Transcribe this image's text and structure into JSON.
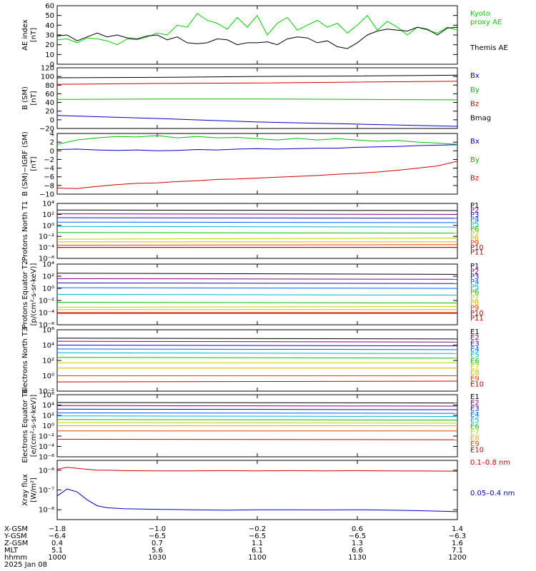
{
  "chart_data": [
    {
      "type": "line",
      "ylabel": "AE index",
      "yunit": "[nT]",
      "ylim": [
        0,
        60
      ],
      "yticks": [
        "0",
        "10",
        "20",
        "30",
        "40",
        "50",
        "60"
      ],
      "legend_placement": "right",
      "x": [
        1000,
        1003,
        1006,
        1009,
        1012,
        1015,
        1018,
        1021,
        1024,
        1027,
        1030,
        1033,
        1036,
        1039,
        1042,
        1045,
        1048,
        1051,
        1054,
        1057,
        1100,
        1103,
        1106,
        1109,
        1112,
        1115,
        1118,
        1121,
        1124,
        1127,
        1130,
        1133,
        1136,
        1139,
        1142,
        1145,
        1148,
        1151,
        1154,
        1157,
        1200
      ],
      "series": [
        {
          "name": "Kyoto proxy AE",
          "color": "#00d000",
          "values": [
            25,
            26,
            22,
            27,
            26,
            24,
            20,
            26,
            25,
            28,
            32,
            30,
            40,
            38,
            52,
            45,
            42,
            36,
            48,
            38,
            50,
            30,
            42,
            48,
            35,
            40,
            45,
            38,
            42,
            32,
            40,
            50,
            35,
            44,
            38,
            30,
            38,
            35,
            32,
            38,
            35
          ]
        },
        {
          "name": "Themis AE",
          "color": "#000000",
          "values": [
            29,
            30,
            24,
            28,
            32,
            28,
            30,
            27,
            26,
            29,
            30,
            25,
            28,
            22,
            21,
            22,
            26,
            25,
            20,
            22,
            22,
            23,
            20,
            26,
            28,
            27,
            22,
            24,
            18,
            16,
            22,
            30,
            34,
            36,
            35,
            34,
            38,
            36,
            30,
            37,
            38
          ]
        }
      ]
    },
    {
      "type": "line",
      "ylabel": "B (SM)",
      "yunit": "[nT]",
      "ylim": [
        -20,
        120
      ],
      "yticks": [
        "−20",
        "0",
        "20",
        "40",
        "60",
        "80",
        "100",
        "120"
      ],
      "legend_placement": "right",
      "x": [
        1000,
        1030,
        1100,
        1130,
        1200
      ],
      "series": [
        {
          "name": "Bx",
          "color": "#0000c8",
          "values": [
            10,
            3,
            -5,
            -10,
            -15
          ]
        },
        {
          "name": "By",
          "color": "#00c000",
          "values": [
            47,
            48,
            48,
            47,
            46
          ]
        },
        {
          "name": "Bz",
          "color": "#d00000",
          "values": [
            82,
            84,
            85,
            87,
            89
          ]
        },
        {
          "name": "Bmag",
          "color": "#000000",
          "values": [
            97,
            98,
            100,
            101,
            103
          ]
        }
      ]
    },
    {
      "type": "line",
      "ylabel": "B (SM)−IGRF (SM)",
      "yunit": "[nT]",
      "ylim": [
        -10,
        4
      ],
      "yticks": [
        "−10",
        "−8",
        "−6",
        "−4",
        "−2",
        "0",
        "2",
        "4"
      ],
      "legend_placement": "right",
      "x": [
        1000,
        1006,
        1012,
        1018,
        1024,
        1030,
        1036,
        1042,
        1048,
        1054,
        1100,
        1106,
        1112,
        1118,
        1124,
        1130,
        1136,
        1142,
        1148,
        1154,
        1200
      ],
      "series": [
        {
          "name": "Bx",
          "color": "#0000c8",
          "values": [
            0.3,
            0.4,
            0.2,
            0.1,
            0.2,
            0.0,
            0.1,
            0.3,
            0.2,
            0.4,
            0.5,
            0.4,
            0.5,
            0.6,
            0.6,
            0.8,
            0.9,
            1.0,
            1.2,
            1.3,
            1.4
          ]
        },
        {
          "name": "By",
          "color": "#00c000",
          "values": [
            1.5,
            2.5,
            3.0,
            3.3,
            3.2,
            3.5,
            3.0,
            3.3,
            3.0,
            3.1,
            2.8,
            2.5,
            2.9,
            2.5,
            2.8,
            2.5,
            2.2,
            2.4,
            2.0,
            1.8,
            1.5
          ]
        },
        {
          "name": "Bz",
          "color": "#d00000",
          "values": [
            -8.6,
            -8.7,
            -8.2,
            -7.8,
            -7.5,
            -7.4,
            -7.1,
            -6.9,
            -6.6,
            -6.5,
            -6.3,
            -6.1,
            -5.9,
            -5.7,
            -5.4,
            -5.2,
            -4.9,
            -4.5,
            -4.0,
            -3.5,
            -2.4
          ]
        }
      ]
    },
    {
      "type": "line",
      "ylabel": "Protons North T1",
      "yunit": "",
      "ylim": [
        -6,
        4
      ],
      "log": true,
      "yticks": [
        "10⁻⁶",
        "10⁻⁴",
        "10⁻²",
        "10⁰",
        "10²",
        "10⁴"
      ],
      "yticks_exp": [
        -6,
        -4,
        -2,
        0,
        2,
        4
      ],
      "legend_placement": "right",
      "x": [
        1000,
        1200
      ],
      "series": [
        {
          "name": "P1",
          "color": "#000000",
          "values": [
            2.8,
            2.7
          ]
        },
        {
          "name": "P2",
          "color": "#800080",
          "values": [
            2.1,
            2.0
          ]
        },
        {
          "name": "P3",
          "color": "#1010b0",
          "values": [
            1.4,
            1.3
          ]
        },
        {
          "name": "P4",
          "color": "#0060ff",
          "values": [
            0.6,
            0.5
          ]
        },
        {
          "name": "P5",
          "color": "#00b0d0",
          "values": [
            -0.2,
            -0.3
          ]
        },
        {
          "name": "P6",
          "color": "#00c000",
          "values": [
            -1.3,
            -1.4
          ]
        },
        {
          "name": "P7",
          "color": "#c0d000",
          "values": [
            -2.5,
            -2.3
          ]
        },
        {
          "name": "P8",
          "color": "#e0b000",
          "values": [
            -3.0,
            -3.0
          ]
        },
        {
          "name": "P9",
          "color": "#e04000",
          "values": [
            -3.6,
            -3.5
          ]
        },
        {
          "name": "P10",
          "color": "#c00000",
          "values": [
            -4.0,
            -4.0
          ]
        },
        {
          "name": "P11",
          "color": "#c00000",
          "values": [
            -4.0,
            -4.0
          ]
        }
      ]
    },
    {
      "type": "line",
      "ylabel": "Protons Equator T2",
      "yunit": "[p/(cm²-s-sr-keV)]",
      "ylim": [
        -6,
        4
      ],
      "log": true,
      "yticks": [
        "10⁻⁶",
        "10⁻⁴",
        "10⁻²",
        "10⁰",
        "10²",
        "10⁴"
      ],
      "yticks_exp": [
        -6,
        -4,
        -2,
        0,
        2,
        4
      ],
      "legend_placement": "right",
      "x": [
        1000,
        1200
      ],
      "series": [
        {
          "name": "P1",
          "color": "#000000",
          "values": [
            2.5,
            2.3
          ]
        },
        {
          "name": "P2",
          "color": "#800080",
          "values": [
            1.6,
            1.5
          ]
        },
        {
          "name": "P3",
          "color": "#1010b0",
          "values": [
            0.9,
            0.8
          ]
        },
        {
          "name": "P4",
          "color": "#0060ff",
          "values": [
            0.1,
            0.0
          ]
        },
        {
          "name": "P5",
          "color": "#00b0d0",
          "values": [
            -1.0,
            -1.1
          ]
        },
        {
          "name": "P6",
          "color": "#00c000",
          "values": [
            -2.3,
            -2.4
          ]
        },
        {
          "name": "P7",
          "color": "#c0d000",
          "values": [
            -3.1,
            -3.0
          ]
        },
        {
          "name": "P8",
          "color": "#e0b000",
          "values": [
            -3.5,
            -3.5
          ]
        },
        {
          "name": "P9",
          "color": "#e04000",
          "values": [
            -4.0,
            -4.0
          ]
        },
        {
          "name": "P10",
          "color": "#c00000",
          "values": [
            -4.1,
            -4.1
          ]
        },
        {
          "name": "P11",
          "color": "#c00000",
          "values": [
            -4.1,
            -4.1
          ]
        }
      ]
    },
    {
      "type": "line",
      "ylabel": "Electrons North T3",
      "yunit": "",
      "ylim": [
        -2,
        6
      ],
      "log": true,
      "yticks": [
        "10⁻²",
        "10⁰",
        "10²",
        "10⁴",
        "10⁶"
      ],
      "yticks_exp": [
        -2,
        0,
        2,
        4,
        6
      ],
      "legend_placement": "right",
      "x": [
        1000,
        1200
      ],
      "series": [
        {
          "name": "E1",
          "color": "#000000",
          "values": [
            4.9,
            4.8
          ]
        },
        {
          "name": "E2",
          "color": "#800080",
          "values": [
            4.5,
            4.4
          ]
        },
        {
          "name": "E3",
          "color": "#1010b0",
          "values": [
            4.0,
            3.9
          ]
        },
        {
          "name": "E4",
          "color": "#0060ff",
          "values": [
            3.5,
            3.4
          ]
        },
        {
          "name": "E5",
          "color": "#00b0d0",
          "values": [
            3.0,
            2.9
          ]
        },
        {
          "name": "E6",
          "color": "#00c000",
          "values": [
            2.4,
            2.3
          ]
        },
        {
          "name": "E7",
          "color": "#c0d000",
          "values": [
            1.7,
            1.7
          ]
        },
        {
          "name": "E8",
          "color": "#e0b000",
          "values": [
            1.0,
            1.0
          ]
        },
        {
          "name": "E9",
          "color": "#e04000",
          "values": [
            0.0,
            0.0
          ]
        },
        {
          "name": "E10",
          "color": "#c00000",
          "values": [
            -0.8,
            -0.7
          ]
        }
      ]
    },
    {
      "type": "line",
      "ylabel": "Electrons Equator T4",
      "yunit": "[e/(cm²-s-sr-keV)]",
      "ylim": [
        -6,
        6
      ],
      "log": true,
      "yticks": [
        "10⁻⁶",
        "10⁻⁴",
        "10⁻²",
        "10⁰",
        "10²",
        "10⁴",
        "10⁶"
      ],
      "yticks_exp": [
        -6,
        -4,
        -2,
        0,
        2,
        4,
        6
      ],
      "legend_placement": "right",
      "x": [
        1000,
        1200
      ],
      "series": [
        {
          "name": "E1",
          "color": "#000000",
          "values": [
            4.5,
            4.4
          ]
        },
        {
          "name": "E2",
          "color": "#800080",
          "values": [
            3.9,
            3.8
          ]
        },
        {
          "name": "E3",
          "color": "#1010b0",
          "values": [
            3.2,
            3.1
          ]
        },
        {
          "name": "E4",
          "color": "#0060ff",
          "values": [
            2.5,
            2.4
          ]
        },
        {
          "name": "E5",
          "color": "#00b0d0",
          "values": [
            1.9,
            1.8
          ]
        },
        {
          "name": "E6",
          "color": "#00c000",
          "values": [
            1.2,
            1.1
          ]
        },
        {
          "name": "E7",
          "color": "#c0d000",
          "values": [
            0.6,
            0.5
          ]
        },
        {
          "name": "E8",
          "color": "#e0b000",
          "values": [
            0.0,
            0.0
          ]
        },
        {
          "name": "E9",
          "color": "#e04000",
          "values": [
            -1.0,
            -1.0
          ]
        },
        {
          "name": "E10",
          "color": "#c00000",
          "values": [
            -2.6,
            -2.7
          ]
        }
      ]
    },
    {
      "type": "line",
      "ylabel": "Xray flux",
      "yunit": "[W/m²]",
      "ylim": [
        -8.5,
        -5.5
      ],
      "log": true,
      "yticks": [
        "10⁻⁸",
        "10⁻⁷",
        "10⁻⁶"
      ],
      "yticks_exp": [
        -8,
        -7,
        -6
      ],
      "legend_placement": "right",
      "x": [
        1000,
        1003,
        1006,
        1009,
        1012,
        1015,
        1020,
        1030,
        1040,
        1050,
        1100,
        1110,
        1120,
        1130,
        1140,
        1150,
        1200
      ],
      "series": [
        {
          "name": "0.1–0.8 nm",
          "color": "#d00000",
          "values": [
            -5.95,
            -5.85,
            -5.9,
            -5.95,
            -6.0,
            -6.0,
            -6.02,
            -6.03,
            -6.03,
            -6.02,
            -6.03,
            -6.02,
            -6.03,
            -6.02,
            -6.03,
            -6.04,
            -6.05
          ]
        },
        {
          "name": "0.05–0.4 nm",
          "color": "#0000c8",
          "values": [
            -7.3,
            -6.95,
            -7.1,
            -7.5,
            -7.8,
            -7.9,
            -7.95,
            -7.98,
            -8.0,
            -8.02,
            -8.0,
            -8.0,
            -8.01,
            -8.0,
            -8.02,
            -8.05,
            -8.1
          ]
        }
      ]
    }
  ],
  "bottom_axis": {
    "rows": [
      {
        "label": "X-GSM",
        "values": [
          "−1.8",
          "−1.0",
          "−0.2",
          "0.6",
          "1.4"
        ]
      },
      {
        "label": "Y-GSM",
        "values": [
          "−6.4",
          "−6.5",
          "−6.5",
          "−6.5",
          "−6.3"
        ]
      },
      {
        "label": "Z-GSM",
        "values": [
          "0.4",
          "0.7",
          "1.1",
          "1.3",
          "1.6"
        ]
      },
      {
        "label": "MLT",
        "values": [
          "5.1",
          "5.6",
          "6.1",
          "6.6",
          "7.1"
        ]
      },
      {
        "label": "hhmm",
        "values": [
          "1000",
          "1030",
          "1100",
          "1130",
          "1200"
        ]
      }
    ],
    "date": "2025 Jan 08"
  }
}
